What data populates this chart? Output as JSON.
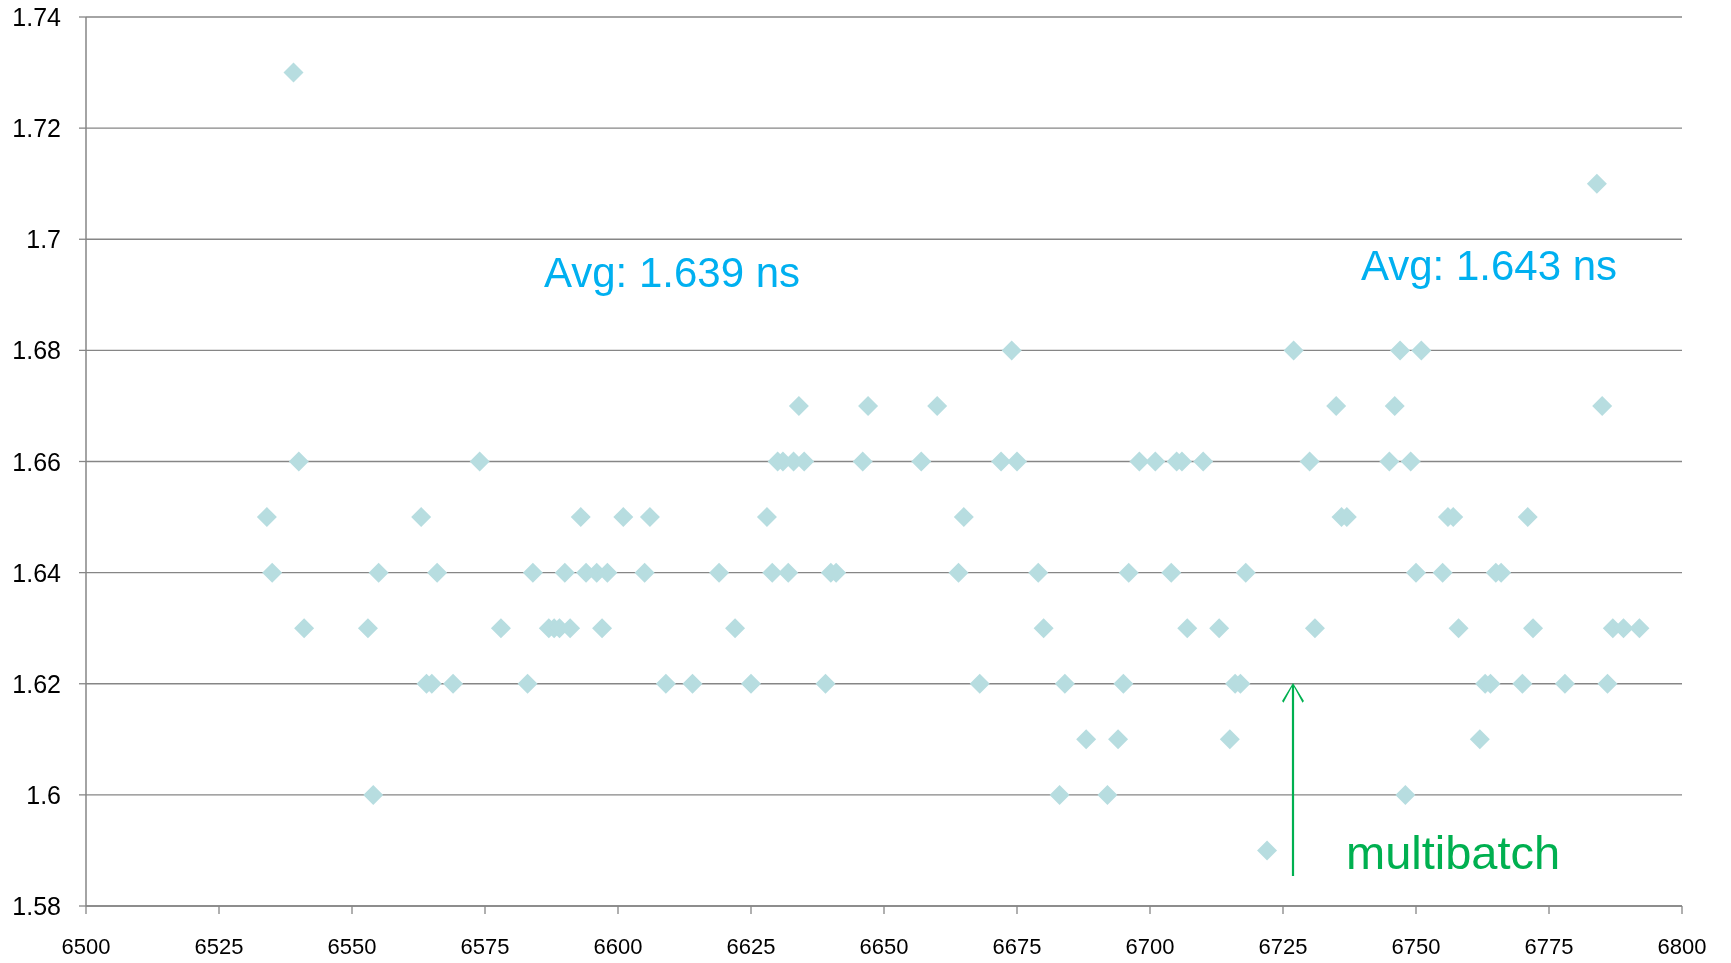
{
  "chart_data": {
    "type": "scatter",
    "x": [
      6534,
      6535,
      6539,
      6540,
      6541,
      6553,
      6554,
      6555,
      6563,
      6564,
      6565,
      6566,
      6569,
      6574,
      6578,
      6583,
      6584,
      6587,
      6588,
      6589,
      6590,
      6591,
      6593,
      6594,
      6596,
      6597,
      6598,
      6601,
      6605,
      6606,
      6609,
      6614,
      6619,
      6622,
      6625,
      6628,
      6629,
      6630,
      6631,
      6632,
      6633,
      6634,
      6635,
      6639,
      6640,
      6641,
      6646,
      6647,
      6657,
      6660,
      6664,
      6665,
      6668,
      6672,
      6674,
      6675,
      6679,
      6680,
      6683,
      6684,
      6688,
      6692,
      6694,
      6695,
      6696,
      6698,
      6701,
      6704,
      6705,
      6706,
      6707,
      6710,
      6713,
      6715,
      6716,
      6717,
      6718,
      6722,
      6727,
      6730,
      6731,
      6735,
      6736,
      6737,
      6745,
      6746,
      6747,
      6748,
      6749,
      6750,
      6751,
      6755,
      6756,
      6757,
      6758,
      6762,
      6763,
      6764,
      6765,
      6766,
      6770,
      6771,
      6772,
      6778,
      6784,
      6785,
      6786,
      6787,
      6789,
      6792
    ],
    "values": [
      1.65,
      1.64,
      1.73,
      1.66,
      1.63,
      1.63,
      1.6,
      1.64,
      1.65,
      1.62,
      1.62,
      1.64,
      1.62,
      1.66,
      1.63,
      1.62,
      1.64,
      1.63,
      1.63,
      1.63,
      1.64,
      1.63,
      1.65,
      1.64,
      1.64,
      1.63,
      1.64,
      1.65,
      1.64,
      1.65,
      1.62,
      1.62,
      1.64,
      1.63,
      1.62,
      1.65,
      1.64,
      1.66,
      1.66,
      1.64,
      1.66,
      1.67,
      1.66,
      1.62,
      1.64,
      1.64,
      1.66,
      1.67,
      1.66,
      1.67,
      1.64,
      1.65,
      1.62,
      1.66,
      1.68,
      1.66,
      1.64,
      1.63,
      1.6,
      1.62,
      1.61,
      1.6,
      1.61,
      1.62,
      1.64,
      1.66,
      1.66,
      1.64,
      1.66,
      1.66,
      1.63,
      1.66,
      1.63,
      1.61,
      1.62,
      1.62,
      1.64,
      1.59,
      1.68,
      1.66,
      1.63,
      1.67,
      1.65,
      1.65,
      1.66,
      1.67,
      1.68,
      1.6,
      1.66,
      1.64,
      1.68,
      1.64,
      1.65,
      1.65,
      1.63,
      1.61,
      1.62,
      1.62,
      1.64,
      1.64,
      1.62,
      1.65,
      1.63,
      1.62,
      1.71,
      1.67,
      1.62,
      1.63,
      1.63,
      1.63
    ],
    "color": "#b7dde0",
    "marker": "diamond",
    "xlim": [
      6500,
      6800
    ],
    "xticks": [
      6500,
      6525,
      6550,
      6575,
      6600,
      6625,
      6650,
      6675,
      6700,
      6725,
      6750,
      6775,
      6800
    ],
    "ylim": [
      1.58,
      1.74
    ],
    "yticks": [
      1.58,
      1.6,
      1.62,
      1.64,
      1.66,
      1.68,
      1.7,
      1.72,
      1.74
    ],
    "grid": "y",
    "annotations": [
      "Avg: 1.639 ns",
      "Avg: 1.643 ns",
      "multibatch"
    ]
  }
}
